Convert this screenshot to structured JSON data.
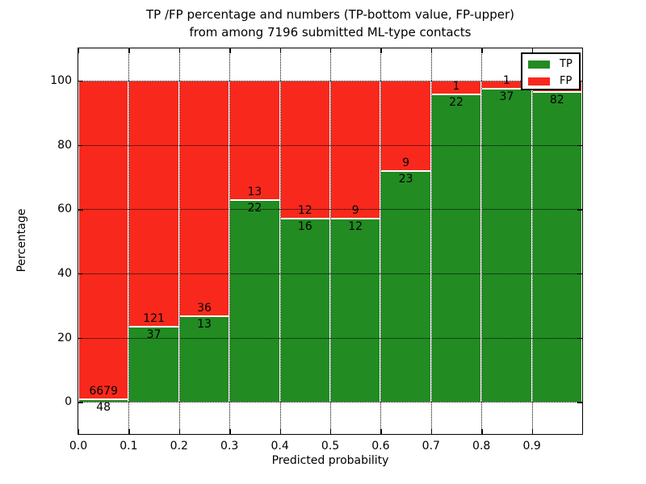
{
  "chart_data": {
    "type": "bar",
    "variant": "stacked-percentage-histogram",
    "title_lines": [
      "TP /FP percentage and numbers (TP-bottom value, FP-upper)",
      "from among 7196 submitted ML-type contacts"
    ],
    "xlabel": "Predicted probability",
    "ylabel": "Percentage",
    "total_contacts": 7196,
    "xlim": [
      0,
      1
    ],
    "ylim": [
      -10,
      110
    ],
    "grid": true,
    "yticks": [
      0,
      20,
      40,
      60,
      80,
      100
    ],
    "xticks": [
      {
        "value": 0.0,
        "label": "0.0"
      },
      {
        "value": 0.1,
        "label": "0.1"
      },
      {
        "value": 0.2,
        "label": "0.2"
      },
      {
        "value": 0.3,
        "label": "0.3"
      },
      {
        "value": 0.4,
        "label": "0.4"
      },
      {
        "value": 0.5,
        "label": "0.5"
      },
      {
        "value": 0.6,
        "label": "0.6"
      },
      {
        "value": 0.7,
        "label": "0.7"
      },
      {
        "value": 0.8,
        "label": "0.8"
      },
      {
        "value": 0.9,
        "label": "0.9"
      }
    ],
    "legend": {
      "position": "upper-right",
      "entries": [
        {
          "label": "TP",
          "color": "#228b22"
        },
        {
          "label": "FP",
          "color": "#f8291c"
        }
      ]
    },
    "colors": {
      "tp": "#228b22",
      "fp": "#f8291c",
      "bar_edge": "#ffffff",
      "grid": "#000000",
      "text": "#000000",
      "background": "#ffffff"
    },
    "bins": [
      {
        "x0": 0.0,
        "x1": 0.1,
        "tp": 48,
        "fp": 6679
      },
      {
        "x0": 0.1,
        "x1": 0.2,
        "tp": 37,
        "fp": 121
      },
      {
        "x0": 0.2,
        "x1": 0.3,
        "tp": 13,
        "fp": 36
      },
      {
        "x0": 0.3,
        "x1": 0.4,
        "tp": 22,
        "fp": 13
      },
      {
        "x0": 0.4,
        "x1": 0.5,
        "tp": 16,
        "fp": 12
      },
      {
        "x0": 0.5,
        "x1": 0.6,
        "tp": 12,
        "fp": 9
      },
      {
        "x0": 0.6,
        "x1": 0.7,
        "tp": 23,
        "fp": 9
      },
      {
        "x0": 0.7,
        "x1": 0.8,
        "tp": 22,
        "fp": 1
      },
      {
        "x0": 0.8,
        "x1": 0.9,
        "tp": 37,
        "fp": 1
      },
      {
        "x0": 0.9,
        "x1": 1.0,
        "tp": 82,
        "fp": 3,
        "fp_label_hidden_behind_legend": true
      }
    ]
  }
}
